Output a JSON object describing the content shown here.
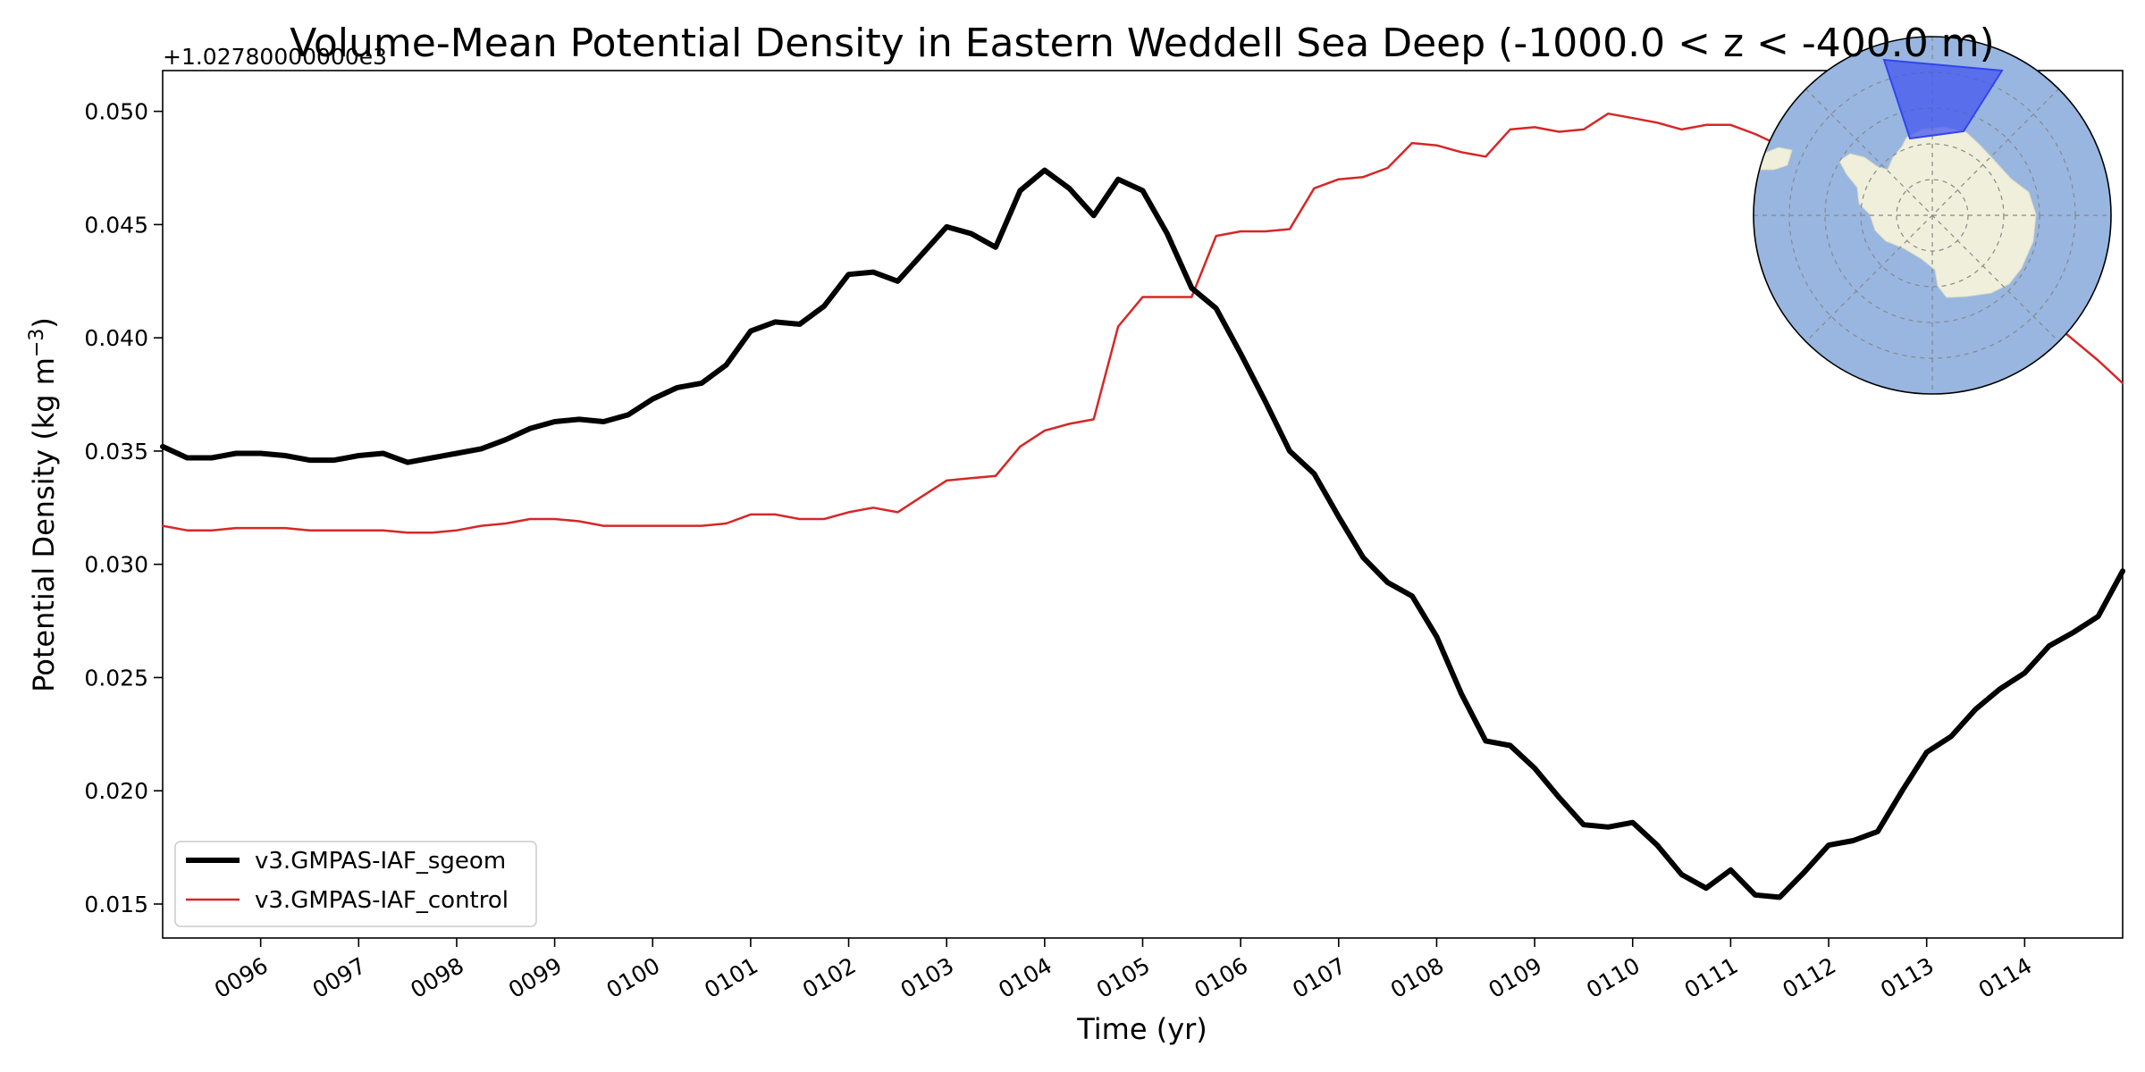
{
  "chart_data": {
    "type": "line",
    "title": "Volume-Mean Potential Density in Eastern Weddell Sea Deep (-1000.0 < z < -400.0 m)",
    "xlabel": "Time (yr)",
    "ylabel": "Potential Density (kg m",
    "ylabel_sup": "−3",
    "ylabel_close": ")",
    "y_offset_label": "+1.02780000000e3",
    "xlim": [
      95.0,
      115.0
    ],
    "ylim": [
      0.0135,
      0.0518
    ],
    "x_ticks": [
      96,
      97,
      98,
      99,
      100,
      101,
      102,
      103,
      104,
      105,
      106,
      107,
      108,
      109,
      110,
      111,
      112,
      113,
      114
    ],
    "x_tick_labels": [
      "0096",
      "0097",
      "0098",
      "0099",
      "0100",
      "0101",
      "0102",
      "0103",
      "0104",
      "0105",
      "0106",
      "0107",
      "0108",
      "0109",
      "0110",
      "0111",
      "0112",
      "0113",
      "0114"
    ],
    "y_ticks": [
      0.015,
      0.02,
      0.025,
      0.03,
      0.035,
      0.04,
      0.045,
      0.05
    ],
    "y_tick_labels": [
      "0.015",
      "0.020",
      "0.025",
      "0.030",
      "0.035",
      "0.040",
      "0.045",
      "0.050"
    ],
    "grid": false,
    "legend_position": "lower-left",
    "series": [
      {
        "name": "v3.GMPAS-IAF_sgeom",
        "color": "#000000",
        "width": "thick",
        "x": [
          95.0,
          95.25,
          95.5,
          95.75,
          96.0,
          96.25,
          96.5,
          96.75,
          97.0,
          97.25,
          97.5,
          97.75,
          98.0,
          98.25,
          98.5,
          98.75,
          99.0,
          99.25,
          99.5,
          99.75,
          100.0,
          100.25,
          100.5,
          100.75,
          101.0,
          101.25,
          101.5,
          101.75,
          102.0,
          102.25,
          102.5,
          102.75,
          103.0,
          103.25,
          103.5,
          103.75,
          104.0,
          104.25,
          104.5,
          104.75,
          105.0,
          105.25,
          105.5,
          105.75,
          106.0,
          106.25,
          106.5,
          106.75,
          107.0,
          107.25,
          107.5,
          107.75,
          108.0,
          108.25,
          108.5,
          108.75,
          109.0,
          109.25,
          109.5,
          109.75,
          110.0,
          110.25,
          110.5,
          110.75,
          111.0,
          111.25,
          111.5,
          111.75,
          112.0,
          112.25,
          112.5,
          112.75,
          113.0,
          113.25,
          113.5,
          113.75,
          114.0,
          114.25,
          114.5,
          114.75,
          115.0
        ],
        "y": [
          0.0352,
          0.0347,
          0.0347,
          0.0349,
          0.0349,
          0.0348,
          0.0346,
          0.0346,
          0.0348,
          0.0349,
          0.0345,
          0.0347,
          0.0349,
          0.0351,
          0.0355,
          0.036,
          0.0363,
          0.0364,
          0.0363,
          0.0366,
          0.0373,
          0.0378,
          0.038,
          0.0388,
          0.0403,
          0.0407,
          0.0406,
          0.0414,
          0.0428,
          0.0429,
          0.0425,
          0.0437,
          0.0449,
          0.0446,
          0.044,
          0.0465,
          0.0474,
          0.0466,
          0.0454,
          0.047,
          0.0465,
          0.0446,
          0.0422,
          0.0413,
          0.0393,
          0.0372,
          0.035,
          0.034,
          0.0321,
          0.0303,
          0.0292,
          0.0286,
          0.0268,
          0.0243,
          0.0222,
          0.022,
          0.021,
          0.0197,
          0.0185,
          0.0184,
          0.0186,
          0.0176,
          0.0163,
          0.0157,
          0.0165,
          0.0154,
          0.0153,
          0.0164,
          0.0176,
          0.0178,
          0.0182,
          0.02,
          0.0217,
          0.0224,
          0.0236,
          0.0245,
          0.0252,
          0.0264,
          0.027,
          0.0277,
          0.0297
        ]
      },
      {
        "name": "v3.GMPAS-IAF_control",
        "color": "#d62728",
        "width": "thin",
        "x": [
          95.0,
          95.25,
          95.5,
          95.75,
          96.0,
          96.25,
          96.5,
          96.75,
          97.0,
          97.25,
          97.5,
          97.75,
          98.0,
          98.25,
          98.5,
          98.75,
          99.0,
          99.25,
          99.5,
          99.75,
          100.0,
          100.25,
          100.5,
          100.75,
          101.0,
          101.25,
          101.5,
          101.75,
          102.0,
          102.25,
          102.5,
          102.75,
          103.0,
          103.25,
          103.5,
          103.75,
          104.0,
          104.25,
          104.5,
          104.75,
          105.0,
          105.25,
          105.5,
          105.75,
          106.0,
          106.25,
          106.5,
          106.75,
          107.0,
          107.25,
          107.5,
          107.75,
          108.0,
          108.25,
          108.5,
          108.75,
          109.0,
          109.25,
          109.5,
          109.75,
          110.0,
          110.25,
          110.5,
          110.75,
          111.0,
          111.25,
          111.5,
          111.75,
          112.0,
          112.25,
          112.5,
          112.75,
          113.0,
          113.25,
          113.5,
          113.75,
          114.0,
          114.25,
          114.5,
          114.75,
          115.0
        ],
        "y": [
          0.0317,
          0.0315,
          0.0315,
          0.0316,
          0.0316,
          0.0316,
          0.0315,
          0.0315,
          0.0315,
          0.0315,
          0.0314,
          0.0314,
          0.0315,
          0.0317,
          0.0318,
          0.032,
          0.032,
          0.0319,
          0.0317,
          0.0317,
          0.0317,
          0.0317,
          0.0317,
          0.0318,
          0.0322,
          0.0322,
          0.032,
          0.032,
          0.0323,
          0.0325,
          0.0323,
          0.033,
          0.0337,
          0.0338,
          0.0339,
          0.0352,
          0.0359,
          0.0362,
          0.0364,
          0.0405,
          0.0418,
          0.0418,
          0.0418,
          0.0445,
          0.0447,
          0.0447,
          0.0448,
          0.0466,
          0.047,
          0.0471,
          0.0475,
          0.0486,
          0.0485,
          0.0482,
          0.048,
          0.0492,
          0.0493,
          0.0491,
          0.0492,
          0.0499,
          0.0497,
          0.0495,
          0.0492,
          0.0494,
          0.0494,
          0.049,
          0.0485,
          0.0482,
          0.0479,
          0.0472,
          0.0467,
          0.046,
          0.0453,
          0.0446,
          0.0437,
          0.0427,
          0.0418,
          0.0408,
          0.0399,
          0.039,
          0.038
        ]
      }
    ]
  },
  "inset_map": {
    "ocean_color": "#98b6e0",
    "land_color": "#efefdb",
    "region_color": "#4455ee",
    "description_icon": "antarctica-polar-map-icon"
  }
}
